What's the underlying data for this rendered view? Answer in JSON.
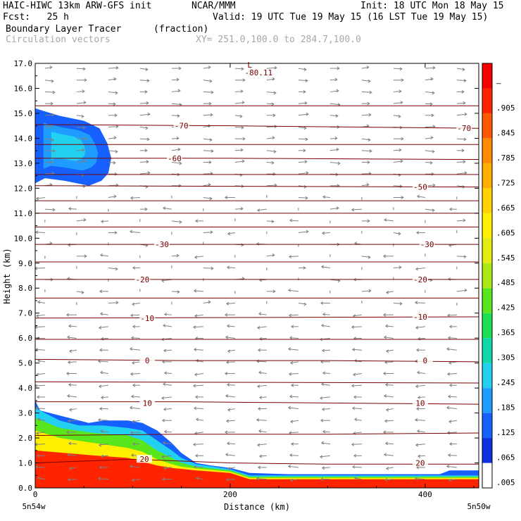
{
  "header": {
    "model": "HAIC-HIWC 13km ARW-GFS init",
    "org": "NCAR/MMM",
    "init": "Init: 18 UTC Mon 18 May 15",
    "fcst": "Fcst:   25 h",
    "valid": "Valid: 19 UTC Tue 19 May 15 (16 LST Tue 19 May 15)",
    "field": "Boundary Layer Tracer",
    "units": "(fraction)",
    "vectors": "Circulation vectors",
    "xy": "XY= 251.0,100.0 to 284.7,100.0"
  },
  "chart_data": {
    "type": "heatmap",
    "title": "Boundary Layer Tracer",
    "units": "(fraction)",
    "xlabel": "Distance (km)",
    "ylabel": "Height (km)",
    "xlim": [
      0,
      455
    ],
    "ylim": [
      0,
      17
    ],
    "x_ticks": [
      "0",
      "200",
      "400"
    ],
    "x_tick_values": [
      0,
      200,
      400
    ],
    "x_end_labels": [
      "5n54w",
      "5n50w"
    ],
    "y_ticks": [
      "0.0",
      "1.0",
      "2.0",
      "3.0",
      "4.0",
      "5.0",
      "6.0",
      "7.0",
      "8.0",
      "9.0",
      "10.0",
      "11.0",
      "12.0",
      "13.0",
      "14.0",
      "15.0",
      "16.0",
      "17.0"
    ],
    "colorbar": {
      "labels": [
        ".005",
        ".065",
        ".125",
        ".185",
        ".245",
        ".305",
        ".365",
        ".425",
        ".485",
        ".545",
        ".605",
        ".665",
        ".725",
        ".785",
        ".845",
        ".905",
        "–"
      ],
      "colors": [
        "#ffffff",
        "#0c2fe0",
        "#1560ff",
        "#1f9cff",
        "#22d0f0",
        "#10d8a8",
        "#1ee050",
        "#5ae61c",
        "#a8ea12",
        "#e2ec10",
        "#fff000",
        "#ffd200",
        "#ffae00",
        "#ff8a00",
        "#ff5800",
        "#ff2400",
        "#f60000"
      ]
    },
    "upper_tracer": {
      "outer_fraction": 0.065,
      "peak_fraction": 0.2,
      "outline": [
        [
          0,
          12.2
        ],
        [
          10,
          12.4
        ],
        [
          30,
          12.3
        ],
        [
          55,
          12.1
        ],
        [
          68,
          12.3
        ],
        [
          75,
          12.6
        ],
        [
          78,
          13.2
        ],
        [
          74,
          13.8
        ],
        [
          66,
          14.4
        ],
        [
          50,
          14.7
        ],
        [
          25,
          14.9
        ],
        [
          8,
          15.1
        ],
        [
          0,
          15.2
        ]
      ]
    },
    "lower_tracer": {
      "levels": [
        {
          "fraction": 0.065,
          "top": [
            [
              0,
              3.5
            ],
            [
              5,
              3.1
            ],
            [
              25,
              2.9
            ],
            [
              45,
              2.7
            ],
            [
              55,
              2.6
            ],
            [
              70,
              2.7
            ],
            [
              95,
              2.7
            ],
            [
              110,
              2.6
            ],
            [
              125,
              2.3
            ],
            [
              140,
              1.8
            ],
            [
              150,
              1.4
            ],
            [
              165,
              1.0
            ],
            [
              180,
              0.9
            ],
            [
              200,
              0.8
            ],
            [
              220,
              0.6
            ],
            [
              260,
              0.55
            ],
            [
              380,
              0.55
            ],
            [
              415,
              0.55
            ],
            [
              425,
              0.7
            ],
            [
              455,
              0.7
            ]
          ]
        },
        {
          "fraction": 0.185,
          "top": [
            [
              0,
              3.2
            ],
            [
              25,
              2.7
            ],
            [
              45,
              2.5
            ],
            [
              70,
              2.5
            ],
            [
              95,
              2.4
            ],
            [
              110,
              2.3
            ],
            [
              125,
              1.9
            ],
            [
              140,
              1.5
            ],
            [
              150,
              1.2
            ],
            [
              165,
              0.95
            ],
            [
              200,
              0.75
            ],
            [
              220,
              0.5
            ],
            [
              455,
              0.5
            ]
          ]
        },
        {
          "fraction": 0.365,
          "top": [
            [
              0,
              2.8
            ],
            [
              25,
              2.4
            ],
            [
              60,
              2.2
            ],
            [
              95,
              2.1
            ],
            [
              110,
              1.9
            ],
            [
              125,
              1.5
            ],
            [
              140,
              1.2
            ],
            [
              150,
              1.0
            ],
            [
              165,
              0.85
            ],
            [
              200,
              0.7
            ],
            [
              220,
              0.45
            ],
            [
              455,
              0.45
            ]
          ]
        },
        {
          "fraction": 0.545,
          "top": [
            [
              0,
              2.3
            ],
            [
              25,
              2.0
            ],
            [
              60,
              1.8
            ],
            [
              95,
              1.6
            ],
            [
              110,
              1.45
            ],
            [
              125,
              1.15
            ],
            [
              140,
              0.95
            ],
            [
              150,
              0.85
            ],
            [
              165,
              0.78
            ],
            [
              200,
              0.65
            ],
            [
              220,
              0.4
            ],
            [
              455,
              0.4
            ]
          ]
        },
        {
          "fraction": 0.845,
          "top": [
            [
              0,
              1.5
            ],
            [
              60,
              1.3
            ],
            [
              95,
              1.2
            ],
            [
              110,
              1.05
            ],
            [
              125,
              0.9
            ],
            [
              140,
              0.8
            ],
            [
              165,
              0.7
            ],
            [
              200,
              0.6
            ],
            [
              220,
              0.35
            ],
            [
              455,
              0.35
            ]
          ]
        }
      ]
    },
    "isotherms": [
      {
        "label": "20",
        "points": [
          [
            0,
            1.0
          ],
          [
            100,
            1.15
          ],
          [
            200,
            1.0
          ],
          [
            300,
            0.95
          ],
          [
            455,
            0.95
          ]
        ],
        "label_at": [
          [
            112,
            1.15
          ],
          [
            395,
            1.0
          ]
        ]
      },
      {
        "label": "",
        "points": [
          [
            0,
            2.1
          ],
          [
            150,
            2.15
          ],
          [
            300,
            2.15
          ],
          [
            455,
            2.2
          ]
        ],
        "label_at": []
      },
      {
        "label": "10",
        "points": [
          [
            0,
            3.45
          ],
          [
            150,
            3.45
          ],
          [
            300,
            3.4
          ],
          [
            455,
            3.35
          ]
        ],
        "label_at": [
          [
            115,
            3.4
          ],
          [
            395,
            3.4
          ]
        ]
      },
      {
        "label": "",
        "points": [
          [
            0,
            4.25
          ],
          [
            455,
            4.2
          ]
        ],
        "label_at": []
      },
      {
        "label": "0",
        "points": [
          [
            0,
            5.15
          ],
          [
            150,
            5.1
          ],
          [
            300,
            5.1
          ],
          [
            455,
            5.05
          ]
        ],
        "label_at": [
          [
            115,
            5.1
          ],
          [
            400,
            5.1
          ]
        ]
      },
      {
        "label": "",
        "points": [
          [
            0,
            5.95
          ],
          [
            455,
            5.95
          ]
        ],
        "label_at": []
      },
      {
        "label": "-10",
        "points": [
          [
            0,
            6.8
          ],
          [
            455,
            6.85
          ]
        ],
        "label_at": [
          [
            115,
            6.8
          ],
          [
            395,
            6.85
          ]
        ]
      },
      {
        "label": "",
        "points": [
          [
            0,
            7.6
          ],
          [
            455,
            7.6
          ]
        ],
        "label_at": []
      },
      {
        "label": "-20",
        "points": [
          [
            0,
            8.35
          ],
          [
            455,
            8.35
          ]
        ],
        "label_at": [
          [
            110,
            8.35
          ],
          [
            395,
            8.35
          ]
        ]
      },
      {
        "label": "",
        "points": [
          [
            0,
            9.05
          ],
          [
            455,
            9.05
          ]
        ],
        "label_at": []
      },
      {
        "label": "-30",
        "points": [
          [
            0,
            9.75
          ],
          [
            455,
            9.75
          ]
        ],
        "label_at": [
          [
            130,
            9.75
          ],
          [
            402,
            9.75
          ]
        ]
      },
      {
        "label": "",
        "points": [
          [
            0,
            10.45
          ],
          [
            455,
            10.45
          ]
        ],
        "label_at": []
      },
      {
        "label": "",
        "points": [
          [
            0,
            11.0
          ],
          [
            455,
            11.0
          ]
        ],
        "label_at": []
      },
      {
        "label": "",
        "points": [
          [
            0,
            11.5
          ],
          [
            455,
            11.5
          ]
        ],
        "label_at": []
      },
      {
        "label": "-50",
        "points": [
          [
            0,
            12.1
          ],
          [
            455,
            12.05
          ]
        ],
        "label_at": [
          [
            395,
            12.05
          ]
        ]
      },
      {
        "label": "",
        "points": [
          [
            0,
            12.55
          ],
          [
            455,
            12.55
          ]
        ],
        "label_at": []
      },
      {
        "label": "-60",
        "points": [
          [
            0,
            13.2
          ],
          [
            200,
            13.2
          ],
          [
            455,
            13.15
          ]
        ],
        "label_at": [
          [
            143,
            13.2
          ]
        ]
      },
      {
        "label": "",
        "points": [
          [
            0,
            13.75
          ],
          [
            455,
            13.75
          ]
        ],
        "label_at": []
      },
      {
        "label": "-70",
        "points": [
          [
            0,
            14.55
          ],
          [
            200,
            14.5
          ],
          [
            455,
            14.4
          ]
        ],
        "label_at": [
          [
            150,
            14.5
          ],
          [
            440,
            14.4
          ]
        ]
      },
      {
        "label": "",
        "points": [
          [
            0,
            15.3
          ],
          [
            455,
            15.3
          ]
        ],
        "label_at": []
      }
    ],
    "min_marker": {
      "label": "L",
      "value": "-80.11",
      "x": 222,
      "y": 16.6
    }
  }
}
